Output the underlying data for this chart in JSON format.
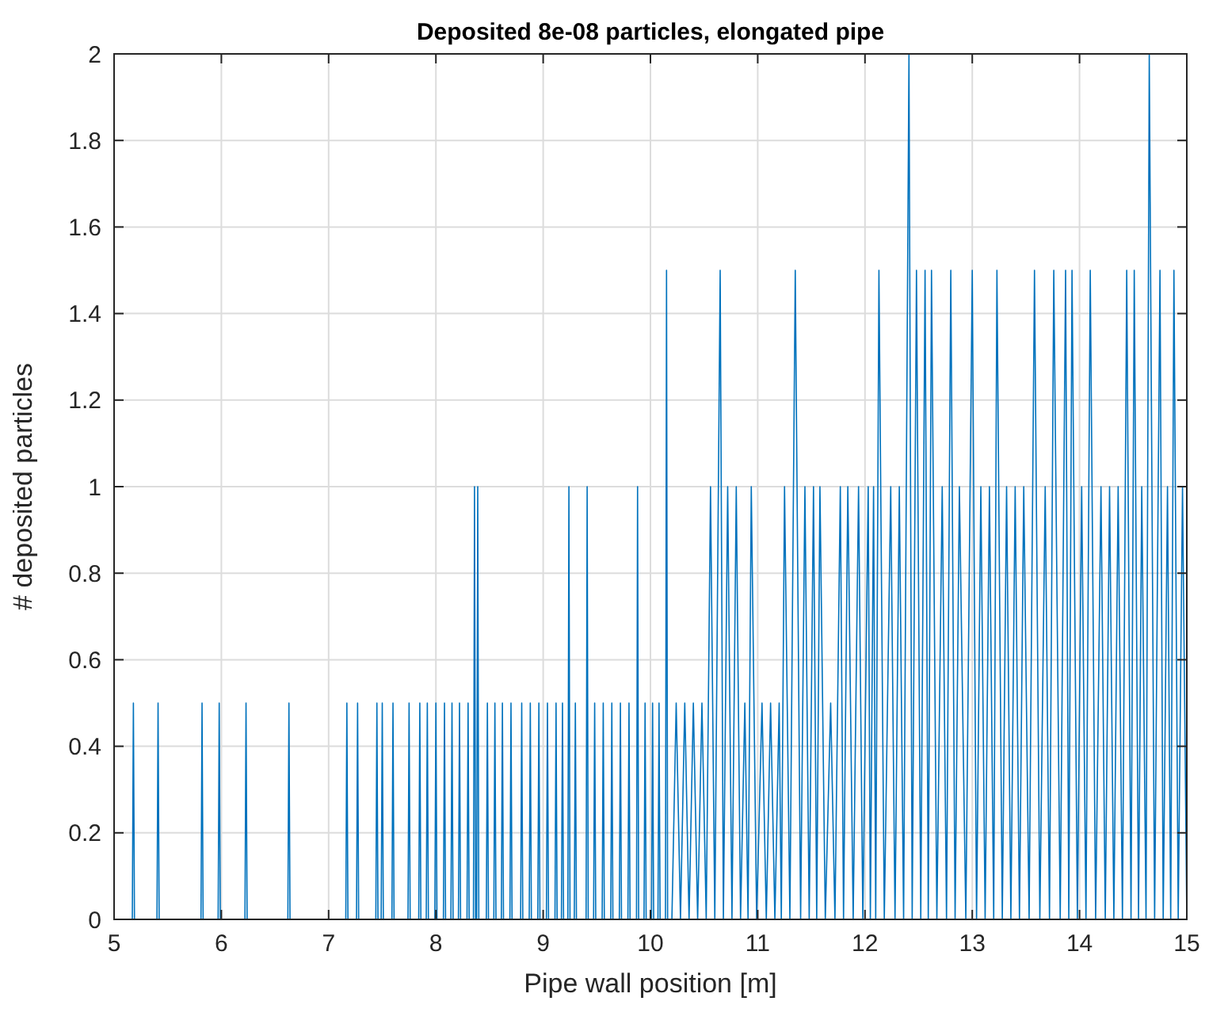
{
  "chart_data": {
    "type": "line",
    "title": "Deposited 8e-08 particles, elongated pipe",
    "xlabel": "Pipe wall position [m]",
    "ylabel": "# deposited particles",
    "xlim": [
      5,
      15
    ],
    "xticks": [
      5,
      6,
      7,
      8,
      9,
      10,
      11,
      12,
      13,
      14,
      15
    ],
    "ylim": [
      0,
      2
    ],
    "yticks": [
      0,
      0.2,
      0.4,
      0.6,
      0.8,
      1,
      1.2,
      1.4,
      1.6,
      1.8,
      2
    ],
    "grid": true,
    "marker": "none",
    "line_style": "solid",
    "series": [
      {
        "color": "#0072bd",
        "x": [
          5.17,
          5.18,
          5.19,
          5.4,
          5.41,
          5.42,
          5.81,
          5.82,
          5.83,
          5.97,
          5.98,
          5.99,
          6.22,
          6.23,
          6.24,
          6.62,
          6.63,
          6.64,
          7.16,
          7.17,
          7.18,
          7.26,
          7.27,
          7.28,
          7.44,
          7.45,
          7.46,
          7.49,
          7.5,
          7.51,
          7.59,
          7.6,
          7.61,
          7.74,
          7.75,
          7.76,
          7.84,
          7.85,
          7.86,
          7.91,
          7.92,
          7.93,
          7.99,
          8.0,
          8.01,
          8.07,
          8.08,
          8.09,
          8.14,
          8.15,
          8.16,
          8.21,
          8.22,
          8.23,
          8.29,
          8.3,
          8.31,
          8.35,
          8.36,
          8.37,
          8.38,
          8.39,
          8.4,
          8.47,
          8.48,
          8.49,
          8.54,
          8.55,
          8.56,
          8.61,
          8.62,
          8.63,
          8.69,
          8.7,
          8.71,
          8.79,
          8.8,
          8.81,
          8.87,
          8.88,
          8.89,
          8.95,
          8.96,
          8.97,
          9.03,
          9.04,
          9.05,
          9.11,
          9.12,
          9.13,
          9.17,
          9.18,
          9.19,
          9.23,
          9.24,
          9.25,
          9.29,
          9.3,
          9.31,
          9.4,
          9.41,
          9.42,
          9.47,
          9.48,
          9.49,
          9.55,
          9.56,
          9.57,
          9.63,
          9.64,
          9.65,
          9.71,
          9.72,
          9.73,
          9.79,
          9.8,
          9.81,
          9.87,
          9.88,
          9.89,
          9.94,
          9.95,
          9.96,
          10.01,
          10.02,
          10.03,
          10.07,
          10.08,
          10.09,
          10.14,
          10.15,
          10.16,
          10.2,
          10.24,
          10.28,
          10.32,
          10.36,
          10.4,
          10.44,
          10.48,
          10.52,
          10.56,
          10.6,
          10.65,
          10.68,
          10.72,
          10.76,
          10.8,
          10.84,
          10.88,
          10.91,
          10.94,
          10.99,
          11.04,
          11.08,
          11.12,
          11.16,
          11.2,
          11.22,
          11.25,
          11.3,
          11.35,
          11.4,
          11.44,
          11.48,
          11.52,
          11.55,
          11.58,
          11.63,
          11.68,
          11.72,
          11.77,
          11.8,
          11.84,
          11.89,
          11.94,
          11.98,
          12.03,
          12.05,
          12.08,
          12.1,
          12.13,
          12.18,
          12.24,
          12.28,
          12.32,
          12.36,
          12.41,
          12.44,
          12.48,
          12.52,
          12.56,
          12.59,
          12.62,
          12.67,
          12.72,
          12.76,
          12.8,
          12.84,
          12.88,
          12.94,
          13.0,
          13.04,
          13.08,
          13.12,
          13.16,
          13.2,
          13.23,
          13.28,
          13.32,
          13.36,
          13.4,
          13.44,
          13.48,
          13.53,
          13.58,
          13.63,
          13.68,
          13.72,
          13.76,
          13.82,
          13.87,
          13.9,
          13.93,
          13.98,
          14.02,
          14.06,
          14.1,
          14.15,
          14.2,
          14.24,
          14.28,
          14.32,
          14.36,
          14.4,
          14.44,
          14.48,
          14.51,
          14.55,
          14.58,
          14.62,
          14.65,
          14.7,
          14.75,
          14.78,
          14.82,
          14.85,
          14.88,
          14.92,
          14.96,
          15
        ],
        "values": [
          0,
          0.5,
          0,
          0,
          0.5,
          0,
          0,
          0.5,
          0,
          0,
          0.5,
          0,
          0,
          0.5,
          0,
          0,
          0.5,
          0,
          0,
          0.5,
          0,
          0,
          0.5,
          0,
          0,
          0.5,
          0,
          0,
          0.5,
          0,
          0,
          0.5,
          0,
          0,
          0.5,
          0,
          0,
          0.5,
          0,
          0,
          0.5,
          0,
          0,
          0.5,
          0,
          0,
          0.5,
          0,
          0,
          0.5,
          0,
          0,
          0.5,
          0,
          0,
          0.5,
          0,
          0,
          1,
          0,
          0,
          1,
          0,
          0,
          0.5,
          0,
          0,
          0.5,
          0,
          0,
          0.5,
          0,
          0,
          0.5,
          0,
          0,
          0.5,
          0,
          0,
          0.5,
          0,
          0,
          0.5,
          0,
          0,
          0.5,
          0,
          0,
          0.5,
          0,
          0,
          0.5,
          0,
          0,
          1,
          0,
          0,
          0.5,
          0,
          0,
          1,
          0,
          0,
          0.5,
          0,
          0,
          0.5,
          0,
          0,
          0.5,
          0,
          0,
          0.5,
          0,
          0,
          0.5,
          0,
          0,
          1,
          0,
          0,
          0.5,
          0,
          0,
          0.5,
          0,
          0,
          0.5,
          0,
          0,
          1.5,
          0,
          0,
          0.5,
          0,
          0.5,
          0,
          0.5,
          0,
          0.5,
          0,
          1,
          0,
          1.5,
          0,
          1,
          0,
          1,
          0,
          0.5,
          0,
          1,
          0,
          0.5,
          0,
          0.5,
          0,
          0.5,
          0,
          1,
          0,
          1.5,
          0,
          1,
          0,
          1,
          0,
          1,
          0,
          0.5,
          0,
          1,
          0,
          1,
          0,
          1,
          0,
          1,
          0,
          1,
          0,
          1.5,
          0,
          1,
          0,
          1,
          0,
          2,
          0,
          1.5,
          0,
          1.5,
          0,
          1.5,
          0,
          1,
          0,
          1.5,
          0,
          1,
          0,
          1.5,
          0,
          1,
          0,
          1,
          0,
          1.5,
          0,
          1,
          0,
          1,
          0,
          1,
          0,
          1.5,
          0,
          1,
          0,
          1.5,
          0,
          1.5,
          0,
          1.5,
          0,
          1,
          0,
          1.5,
          0,
          1,
          0,
          1,
          0,
          1,
          0,
          1.5,
          0,
          1.5,
          0,
          1,
          0,
          2,
          0,
          1.5,
          0,
          1,
          0,
          1.5,
          0,
          1,
          0
        ]
      }
    ]
  }
}
